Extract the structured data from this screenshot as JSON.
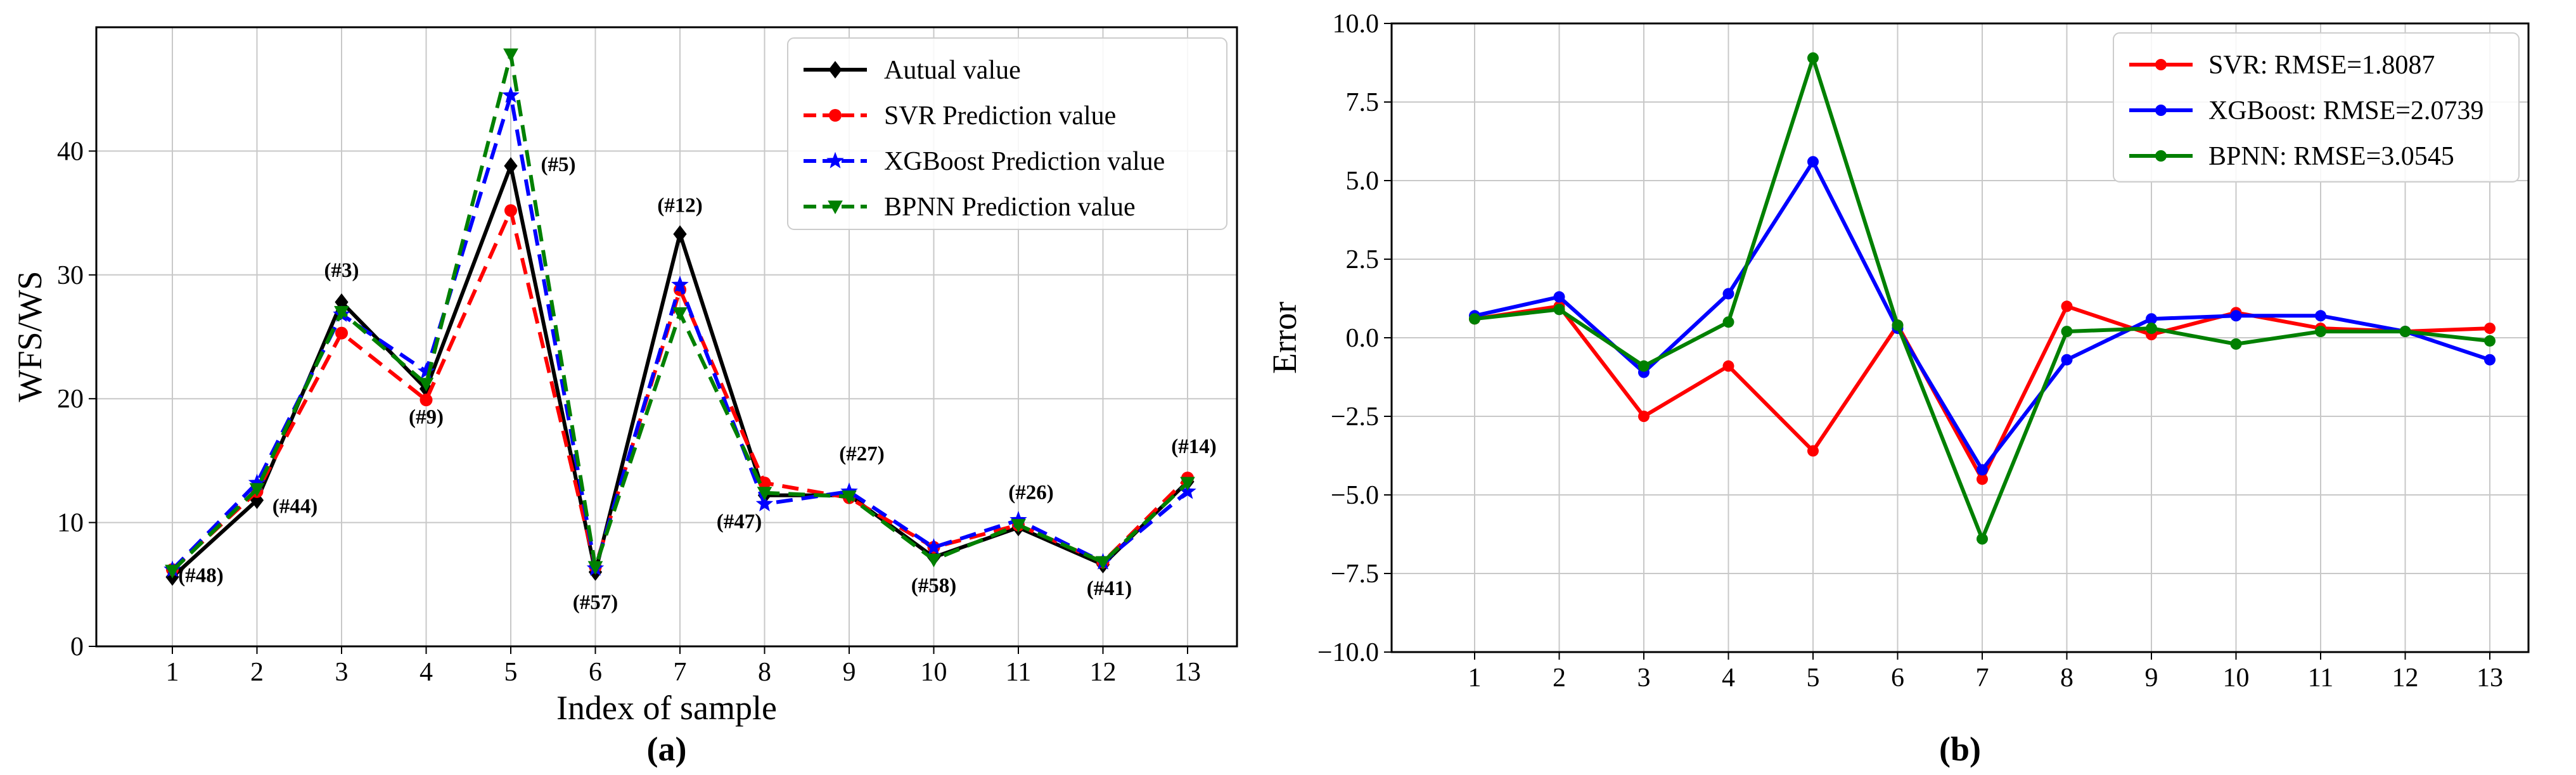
{
  "chart_data": [
    {
      "type": "line",
      "panel_label": "(a)",
      "xlabel": "Index of sample",
      "ylabel": "WFS/WS",
      "categories": [
        1,
        2,
        3,
        4,
        5,
        6,
        7,
        8,
        9,
        10,
        11,
        12,
        13
      ],
      "ylim": [
        0,
        50
      ],
      "yticks": [
        0,
        10,
        20,
        30,
        40
      ],
      "grid": true,
      "legend_position": "top-right",
      "series": [
        {
          "name": "Autual value",
          "color": "#000000",
          "dash": "solid",
          "marker": "diamond",
          "values": [
            5.6,
            11.8,
            27.8,
            20.8,
            38.8,
            6.0,
            33.3,
            12.2,
            12.2,
            7.2,
            9.6,
            6.6,
            13.3
          ]
        },
        {
          "name": "SVR Prediction value",
          "color": "#ff0000",
          "dash": "dashed",
          "marker": "circle",
          "values": [
            6.2,
            12.5,
            25.3,
            19.9,
            35.2,
            6.4,
            28.8,
            13.2,
            12.0,
            8.0,
            9.8,
            6.8,
            13.6
          ]
        },
        {
          "name": "XGBoost Prediction value",
          "color": "#0000ff",
          "dash": "dashed",
          "marker": "star",
          "values": [
            6.2,
            13.2,
            26.8,
            22.2,
            44.5,
            6.3,
            29.2,
            11.5,
            12.5,
            8.0,
            10.2,
            6.8,
            12.5
          ]
        },
        {
          "name": "BPNN Prediction value",
          "color": "#008000",
          "dash": "dashed",
          "marker": "triangle-down",
          "values": [
            6.1,
            12.7,
            27.0,
            21.2,
            47.8,
            6.4,
            26.9,
            12.4,
            12.1,
            7.0,
            9.8,
            6.8,
            13.2
          ]
        }
      ],
      "annotations": [
        {
          "i": 1,
          "text": "(#48)"
        },
        {
          "i": 2,
          "text": "(#44)"
        },
        {
          "i": 3,
          "text": "(#3)"
        },
        {
          "i": 4,
          "text": "(#9)"
        },
        {
          "i": 5,
          "text": "(#5)"
        },
        {
          "i": 6,
          "text": "(#57)"
        },
        {
          "i": 7,
          "text": "(#12)"
        },
        {
          "i": 8,
          "text": "(#47)"
        },
        {
          "i": 9,
          "text": "(#27)"
        },
        {
          "i": 10,
          "text": "(#58)"
        },
        {
          "i": 11,
          "text": "(#26)"
        },
        {
          "i": 12,
          "text": "(#41)"
        },
        {
          "i": 13,
          "text": "(#14)"
        }
      ]
    },
    {
      "type": "line",
      "panel_label": "(b)",
      "xlabel": "",
      "ylabel": "Error",
      "categories": [
        1,
        2,
        3,
        4,
        5,
        6,
        7,
        8,
        9,
        10,
        11,
        12,
        13
      ],
      "ylim": [
        -10.0,
        10.0
      ],
      "yticks": [
        "−10.0",
        "−7.5",
        "−5.0",
        "−2.5",
        "0.0",
        "2.5",
        "5.0",
        "7.5",
        "10.0"
      ],
      "ytick_values": [
        -10.0,
        -7.5,
        -5.0,
        -2.5,
        0.0,
        2.5,
        5.0,
        7.5,
        10.0
      ],
      "grid": true,
      "legend_position": "top-right",
      "series": [
        {
          "name": "SVR: RMSE=1.8087",
          "color": "#ff0000",
          "dash": "solid",
          "marker": "circle",
          "values": [
            0.6,
            1.0,
            -2.5,
            -0.9,
            -3.6,
            0.4,
            -4.5,
            1.0,
            0.1,
            0.8,
            0.3,
            0.2,
            0.3
          ]
        },
        {
          "name": "XGBoost: RMSE=2.0739",
          "color": "#0000ff",
          "dash": "solid",
          "marker": "circle",
          "values": [
            0.7,
            1.3,
            -1.1,
            1.4,
            5.6,
            0.3,
            -4.2,
            -0.7,
            0.6,
            0.7,
            0.7,
            0.2,
            -0.7
          ]
        },
        {
          "name": "BPNN: RMSE=3.0545",
          "color": "#008000",
          "dash": "solid",
          "marker": "circle",
          "values": [
            0.6,
            0.9,
            -0.9,
            0.5,
            8.9,
            0.4,
            -6.4,
            0.2,
            0.3,
            -0.2,
            0.2,
            0.2,
            -0.1
          ]
        }
      ]
    }
  ]
}
